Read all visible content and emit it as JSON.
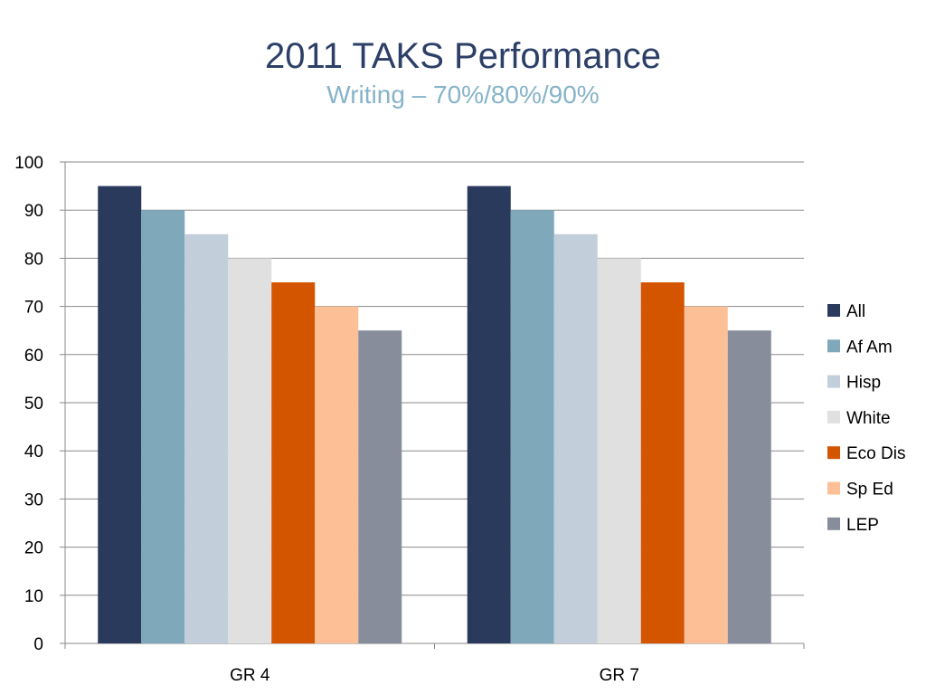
{
  "slide": {
    "title": "2011 TAKS Performance",
    "subtitle": "Writing – 70%/80%/90%"
  },
  "chart_data": {
    "type": "bar",
    "categories": [
      "GR 4",
      "GR 7"
    ],
    "series": [
      {
        "name": "All",
        "color": "#2a3a5c",
        "values": [
          95,
          95
        ]
      },
      {
        "name": "Af Am",
        "color": "#7fa8bb",
        "values": [
          90,
          90
        ]
      },
      {
        "name": "Hisp",
        "color": "#c2ced9",
        "values": [
          85,
          85
        ]
      },
      {
        "name": "White",
        "color": "#e0e0e0",
        "values": [
          80,
          80
        ]
      },
      {
        "name": "Eco Dis",
        "color": "#d45500",
        "values": [
          75,
          75
        ]
      },
      {
        "name": "Sp Ed",
        "color": "#fdbf96",
        "values": [
          70,
          70
        ]
      },
      {
        "name": "LEP",
        "color": "#878d9a",
        "values": [
          65,
          65
        ]
      }
    ],
    "ylim": [
      0,
      100
    ],
    "yticks": [
      0,
      10,
      20,
      30,
      40,
      50,
      60,
      70,
      80,
      90,
      100
    ],
    "grid": true,
    "legend": "right"
  }
}
